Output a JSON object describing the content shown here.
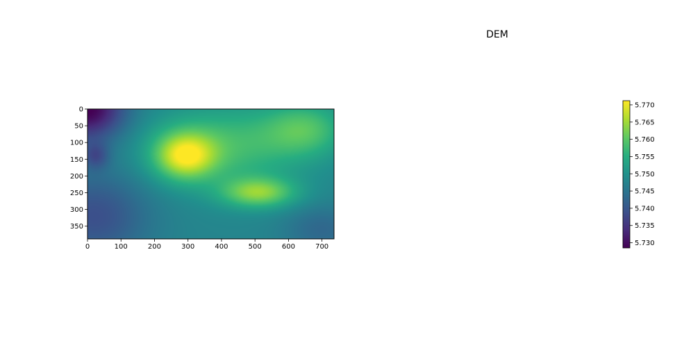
{
  "chart_data": {
    "type": "heatmap",
    "title": "DEM",
    "xlabel": "",
    "ylabel": "",
    "xlim": [
      0,
      736
    ],
    "ylim": [
      388,
      0
    ],
    "x_ticks": [
      "0",
      "100",
      "200",
      "300",
      "400",
      "500",
      "600",
      "700"
    ],
    "y_ticks": [
      "0",
      "50",
      "100",
      "150",
      "200",
      "250",
      "300",
      "350"
    ],
    "x_tick_values": [
      0,
      100,
      200,
      300,
      400,
      500,
      600,
      700
    ],
    "y_tick_values": [
      0,
      50,
      100,
      150,
      200,
      250,
      300,
      350
    ],
    "colormap": "viridis",
    "colorbar": {
      "vmin": 5.7285,
      "vmax": 5.7712,
      "ticks": [
        "5.730",
        "5.735",
        "5.740",
        "5.745",
        "5.750",
        "5.755",
        "5.760",
        "5.765",
        "5.770"
      ],
      "tick_values": [
        5.73,
        5.735,
        5.74,
        5.745,
        5.75,
        5.755,
        5.76,
        5.765,
        5.77
      ]
    },
    "grid": false,
    "surface": {
      "base": 5.748,
      "features": [
        {
          "x": 290,
          "y": 140,
          "sx": 90,
          "sy": 70,
          "amp": 0.019
        },
        {
          "x": 510,
          "y": 250,
          "sx": 110,
          "sy": 45,
          "amp": 0.015
        },
        {
          "x": 420,
          "y": 110,
          "sx": 220,
          "sy": 120,
          "amp": 0.01
        },
        {
          "x": 650,
          "y": 60,
          "sx": 120,
          "sy": 80,
          "amp": 0.01
        },
        {
          "x": 0,
          "y": 0,
          "sx": 110,
          "sy": 90,
          "amp": -0.02
        },
        {
          "x": 25,
          "y": 140,
          "sx": 40,
          "sy": 40,
          "amp": -0.008
        },
        {
          "x": 20,
          "y": 320,
          "sx": 160,
          "sy": 130,
          "amp": -0.009
        },
        {
          "x": 700,
          "y": 360,
          "sx": 110,
          "sy": 70,
          "amp": -0.005
        }
      ]
    }
  }
}
